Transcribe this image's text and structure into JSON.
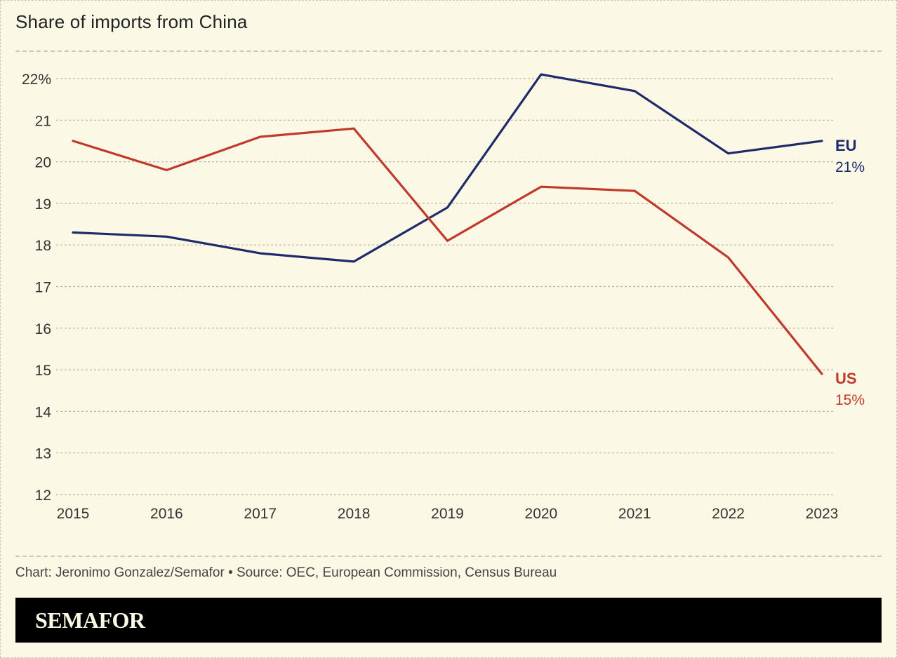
{
  "title": "Share of imports from China",
  "credit": "Chart: Jeronimo Gonzalez/Semafor • Source: OEC, European Commission, Census Bureau",
  "brand": "SEMAFOR",
  "colors": {
    "eu": "#1f2a6b",
    "us": "#c0392b",
    "grid": "#b5b3a6",
    "background": "#fbf9e6"
  },
  "chart_data": {
    "type": "line",
    "title": "Share of imports from China",
    "x": [
      "2015",
      "2016",
      "2017",
      "2018",
      "2019",
      "2020",
      "2021",
      "2022",
      "2023"
    ],
    "ylim": [
      12,
      22
    ],
    "yticks": [
      22,
      21,
      20,
      19,
      18,
      17,
      16,
      15,
      14,
      13,
      12
    ],
    "ytick_labels": [
      "22%",
      "21",
      "20",
      "19",
      "18",
      "17",
      "16",
      "15",
      "14",
      "13",
      "12"
    ],
    "grid": true,
    "series": [
      {
        "name": "EU",
        "end_label": "21%",
        "color": "#1f2a6b",
        "values": [
          18.3,
          18.2,
          17.8,
          17.6,
          18.9,
          22.1,
          21.7,
          20.2,
          20.5
        ]
      },
      {
        "name": "US",
        "end_label": "15%",
        "color": "#c0392b",
        "values": [
          20.5,
          19.8,
          20.6,
          20.8,
          18.1,
          19.4,
          19.3,
          17.7,
          14.9
        ]
      }
    ]
  }
}
